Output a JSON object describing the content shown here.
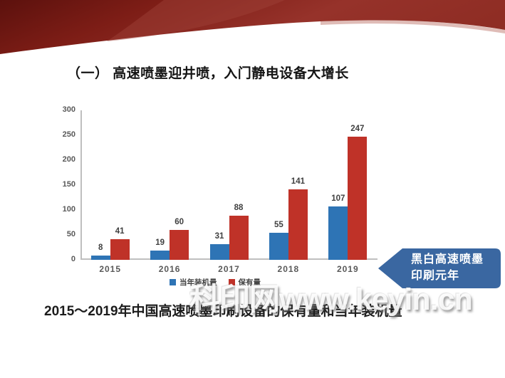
{
  "slide": {
    "title": "（一） 高速喷墨迎井喷，入门静电设备大增长",
    "caption": "2015～2019年中国高速喷墨印刷设备的保有量和当年装机量",
    "watermark": "科印网www.keyin.cn",
    "callout": {
      "line1": "黑白高速喷墨",
      "line2": "印刷元年"
    }
  },
  "colors": {
    "bar_blue": "#2E74B5",
    "bar_red": "#BF3228",
    "callout_blue": "#3A67A1",
    "ribbon_dark_red": "#5C110D",
    "ribbon_red": "#96322A",
    "axis_gray": "#BFBFBF"
  },
  "chart_data": {
    "type": "bar",
    "title": "",
    "xlabel": "",
    "ylabel": "",
    "categories": [
      "2015",
      "2016",
      "2017",
      "2018",
      "2019"
    ],
    "series": [
      {
        "key": "annual",
        "name": "当年装机量",
        "color": "#2E74B5",
        "values": [
          8,
          19,
          31,
          55,
          107
        ]
      },
      {
        "key": "holdings",
        "name": "保有量",
        "color": "#BF3228",
        "values": [
          41,
          60,
          88,
          141,
          247
        ]
      }
    ],
    "ylim": [
      0,
      300
    ],
    "yticks": [
      0,
      50,
      100,
      150,
      200,
      250,
      300
    ],
    "grid": false,
    "legend_position": "bottom",
    "data_labels": true
  }
}
